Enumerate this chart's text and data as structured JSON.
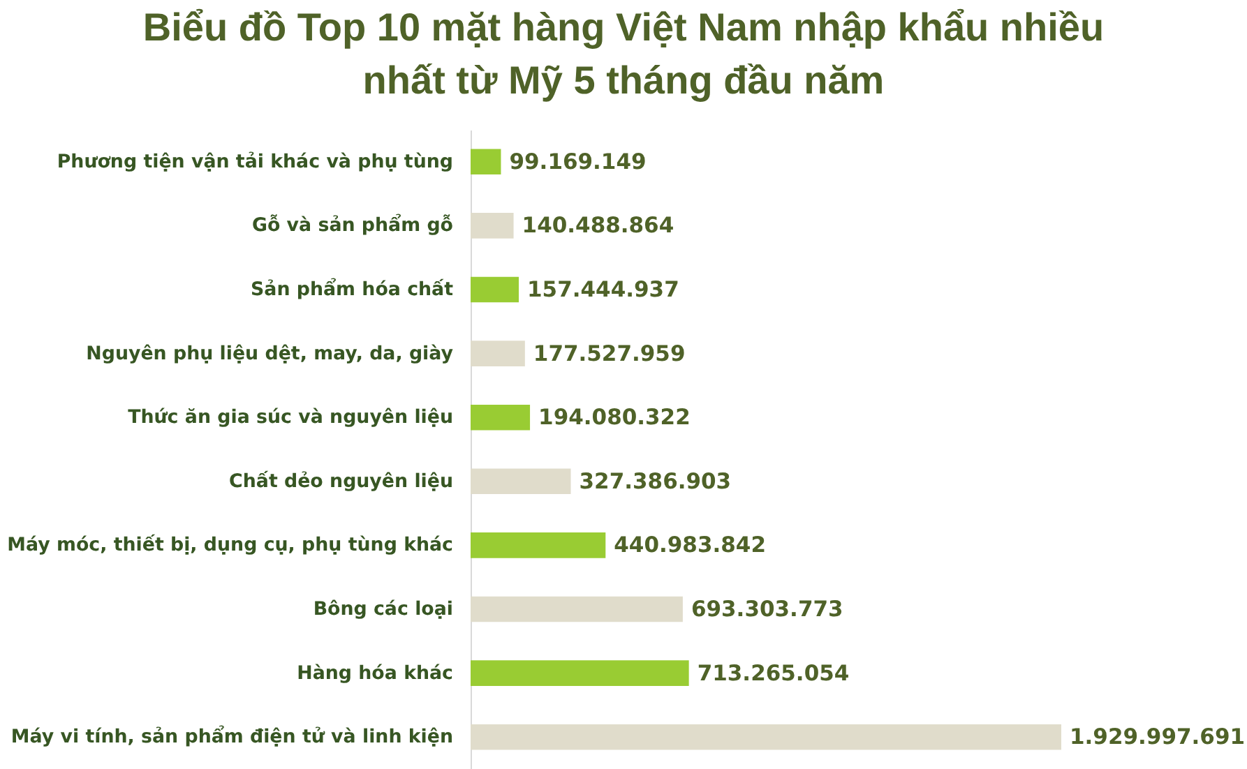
{
  "chart_data": {
    "type": "bar",
    "orientation": "horizontal",
    "title": "Biểu đồ Top 10 mặt hàng Việt Nam nhập khẩu nhiều nhất từ Mỹ 5 tháng đầu năm",
    "categories": [
      "Phương tiện vận tải khác và phụ tùng",
      "Gỗ và sản phẩm gỗ",
      "Sản phẩm hóa chất",
      "Nguyên phụ liệu dệt, may, da, giày",
      "Thức ăn gia súc và nguyên liệu",
      "Chất dẻo nguyên liệu",
      "Máy móc, thiết bị, dụng cụ, phụ tùng khác",
      "Bông các loại",
      "Hàng hóa khác",
      "Máy vi tính, sản phẩm điện tử và linh kiện"
    ],
    "values": [
      99169149,
      140488864,
      157444937,
      177527959,
      194080322,
      327386903,
      440983842,
      693303773,
      713265054,
      1929997691
    ],
    "colors": [
      "#99cc33",
      "#e0dccb",
      "#99cc33",
      "#e0dccb",
      "#99cc33",
      "#e0dccb",
      "#99cc33",
      "#e0dccb",
      "#99cc33",
      "#e0dccb"
    ],
    "value_labels": [
      "99.169.149",
      "140.488.864",
      "157.444.937",
      "177.527.959",
      "194.080.322",
      "327.386.903",
      "440.983.842",
      "693.303.773",
      "713.265.054",
      "1.929.997.691"
    ],
    "tick_labels": "y"
  }
}
